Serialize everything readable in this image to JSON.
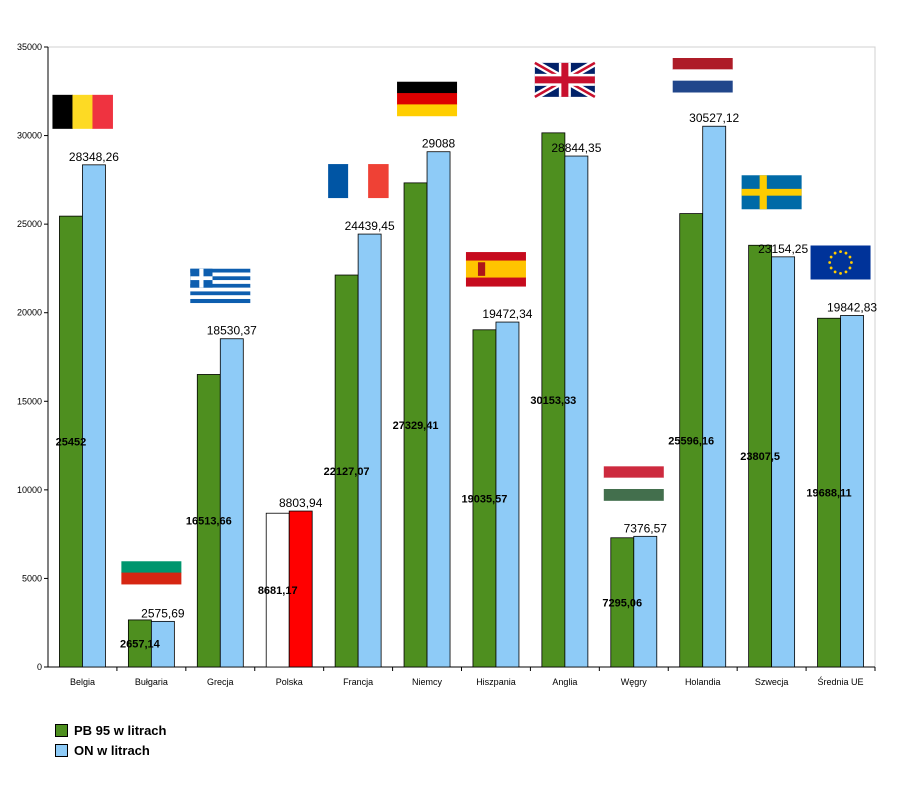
{
  "chart_data": {
    "type": "bar",
    "title": "",
    "xlabel": "",
    "ylabel": "",
    "ylim": [
      0,
      35000
    ],
    "yticks": [
      0,
      5000,
      10000,
      15000,
      20000,
      25000,
      30000,
      35000
    ],
    "grid": false,
    "legend_position": "bottom-left",
    "categories": [
      "Belgia",
      "Bułgaria",
      "Grecja",
      "Polska",
      "Francja",
      "Niemcy",
      "Hiszpania",
      "Anglia",
      "Węgry",
      "Holandia",
      "Szwecja",
      "Średnia UE"
    ],
    "flags": [
      "belgium-flag",
      "bulgaria-flag",
      "greece-flag",
      "",
      "france-flag",
      "germany-flag",
      "spain-flag",
      "uk-flag",
      "hungary-flag",
      "netherlands-flag",
      "sweden-flag",
      "eu-flag"
    ],
    "series": [
      {
        "name": "PB 95 w litrach",
        "color": "#4e8f1f",
        "values": [
          25452,
          2657.14,
          16513.66,
          8681.17,
          22127.07,
          27329.41,
          19035.57,
          30153.33,
          7295.06,
          25596.16,
          23807.5,
          19688.11
        ],
        "labels": [
          "25452",
          "2657,14",
          "16513,66",
          "8681,17",
          "22127,07",
          "27329,41",
          "19035,57",
          "30153,33",
          "7295,06",
          "25596,16",
          "23807,5",
          "19688,11"
        ]
      },
      {
        "name": "ON w litrach",
        "color": "#8ecbf7",
        "values": [
          28348.26,
          2575.69,
          18530.37,
          8803.94,
          24439.45,
          29088,
          19472.34,
          28844.35,
          7376.57,
          30527.12,
          23154.25,
          19842.83
        ],
        "labels": [
          "28348,26",
          "2575,69",
          "18530,37",
          "8803,94",
          "24439,45",
          "29088",
          "19472,34",
          "28844,35",
          "7376,57",
          "30527,12",
          "23154,25",
          "19842,83"
        ]
      }
    ],
    "highlight": {
      "category": "Polska",
      "colors": [
        "#ffffff",
        "#ff0000"
      ]
    }
  },
  "legend": [
    {
      "label": "PB 95 w litrach",
      "color": "#4e8f1f"
    },
    {
      "label": "ON w litrach",
      "color": "#8ecbf7"
    }
  ]
}
